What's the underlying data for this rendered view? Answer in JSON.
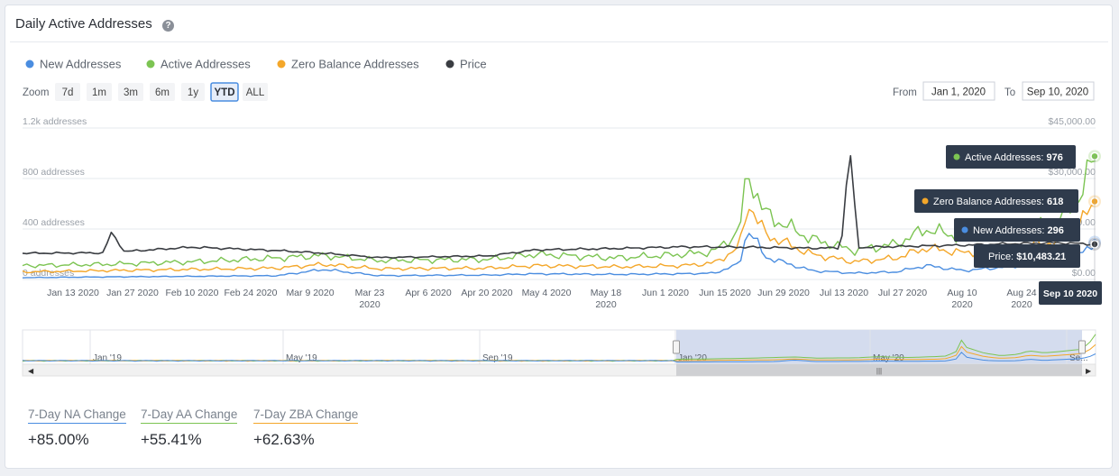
{
  "title": "Daily Active Addresses",
  "help_icon": "question-circle-icon",
  "legend": [
    {
      "name": "New Addresses",
      "color": "#4a8de0"
    },
    {
      "name": "Active Addresses",
      "color": "#7cc452"
    },
    {
      "name": "Zero Balance Addresses",
      "color": "#f4a72a"
    },
    {
      "name": "Price",
      "color": "#3a3d42"
    }
  ],
  "zoom": {
    "label": "Zoom",
    "buttons": [
      "7d",
      "1m",
      "3m",
      "6m",
      "1y",
      "YTD",
      "ALL"
    ],
    "active": "YTD"
  },
  "range": {
    "from_label": "From",
    "from": "Jan 1, 2020",
    "to_label": "To",
    "to": "Sep 10, 2020"
  },
  "chart_data": {
    "type": "line",
    "x_ticks": [
      "Jan 13 2020",
      "Jan 27 2020",
      "Feb 10 2020",
      "Feb 24 2020",
      "Mar 9 2020",
      "Mar 23 2020",
      "Apr 6 2020",
      "Apr 20 2020",
      "May 4 2020",
      "May 18 2020",
      "Jun 1 2020",
      "Jun 15 2020",
      "Jun 29 2020",
      "Jul 13 2020",
      "Jul 27 2020",
      "Aug 10 2020",
      "Aug 24 2020"
    ],
    "y_left_ticks": [
      "0 addresses",
      "400 addresses",
      "800 addresses",
      "1.2k addresses"
    ],
    "y_left_range": [
      0,
      1200
    ],
    "y_right_ticks": [
      "$0.00",
      "$15,000.00",
      "$30,000.00",
      "$45,000.00"
    ],
    "y_right_range": [
      0,
      45000
    ],
    "x_range": [
      "2020-01-01",
      "2020-09-10"
    ],
    "series": [
      {
        "name": "Active Addresses",
        "x": [
          "2020-01-01",
          "2020-01-20",
          "2020-02-10",
          "2020-03-01",
          "2020-03-12",
          "2020-03-25",
          "2020-04-20",
          "2020-05-01",
          "2020-05-20",
          "2020-06-05",
          "2020-06-12",
          "2020-06-18",
          "2020-06-20",
          "2020-06-24",
          "2020-07-05",
          "2020-07-15",
          "2020-07-25",
          "2020-08-01",
          "2020-08-10",
          "2020-08-20",
          "2020-09-01",
          "2020-09-06",
          "2020-09-10"
        ],
        "values": [
          110,
          120,
          140,
          170,
          190,
          150,
          160,
          200,
          170,
          200,
          220,
          380,
          860,
          520,
          320,
          230,
          280,
          400,
          330,
          380,
          450,
          650,
          976
        ]
      },
      {
        "name": "Zero Balance Addresses",
        "x": [
          "2020-01-01",
          "2020-01-20",
          "2020-02-10",
          "2020-03-01",
          "2020-03-12",
          "2020-03-25",
          "2020-04-20",
          "2020-05-01",
          "2020-05-20",
          "2020-06-05",
          "2020-06-12",
          "2020-06-18",
          "2020-06-20",
          "2020-06-24",
          "2020-07-05",
          "2020-07-15",
          "2020-07-25",
          "2020-08-01",
          "2020-08-10",
          "2020-08-20",
          "2020-09-01",
          "2020-09-06",
          "2020-09-10"
        ],
        "values": [
          60,
          70,
          80,
          90,
          120,
          85,
          90,
          110,
          100,
          110,
          130,
          250,
          620,
          360,
          200,
          140,
          170,
          250,
          210,
          250,
          300,
          420,
          618
        ]
      },
      {
        "name": "New Addresses",
        "x": [
          "2020-01-01",
          "2020-01-20",
          "2020-02-10",
          "2020-03-01",
          "2020-03-12",
          "2020-03-25",
          "2020-04-20",
          "2020-05-01",
          "2020-05-20",
          "2020-06-05",
          "2020-06-12",
          "2020-06-18",
          "2020-06-20",
          "2020-06-24",
          "2020-07-05",
          "2020-07-15",
          "2020-07-25",
          "2020-08-01",
          "2020-08-10",
          "2020-08-20",
          "2020-09-01",
          "2020-09-06",
          "2020-09-10"
        ],
        "values": [
          15,
          20,
          25,
          30,
          80,
          30,
          35,
          45,
          40,
          45,
          50,
          120,
          410,
          180,
          70,
          50,
          60,
          110,
          70,
          100,
          130,
          190,
          296
        ]
      },
      {
        "name": "Price",
        "x": [
          "2020-01-01",
          "2020-01-20",
          "2020-01-22",
          "2020-01-25",
          "2020-02-10",
          "2020-03-01",
          "2020-03-12",
          "2020-03-25",
          "2020-04-20",
          "2020-05-01",
          "2020-05-20",
          "2020-06-05",
          "2020-06-20",
          "2020-07-05",
          "2020-07-12",
          "2020-07-14",
          "2020-07-16",
          "2020-07-25",
          "2020-08-10",
          "2020-08-20",
          "2020-09-01",
          "2020-09-10"
        ],
        "values": [
          7800,
          7900,
          14000,
          8300,
          9600,
          8600,
          7800,
          6500,
          7000,
          8800,
          9200,
          9700,
          9600,
          9300,
          9400,
          40000,
          9500,
          9800,
          10200,
          10600,
          10900,
          10483
        ]
      }
    ]
  },
  "tooltips": {
    "active": {
      "label": "Active Addresses:",
      "value": "976"
    },
    "zero": {
      "label": "Zero Balance Addresses:",
      "value": "618"
    },
    "new": {
      "label": "New Addresses:",
      "value": "296"
    },
    "price": {
      "label": "Price:",
      "value": "$10,483.21"
    },
    "date": "Sep 10 2020"
  },
  "navigator": {
    "labels": [
      "Jan '19",
      "May '19",
      "Sep '19",
      "Jan '20",
      "May '20",
      "Se..."
    ]
  },
  "stats": [
    {
      "label": "7-Day NA Change",
      "value": "+85.00%",
      "color": "#4a8de0"
    },
    {
      "label": "7-Day AA Change",
      "value": "+55.41%",
      "color": "#7cc452"
    },
    {
      "label": "7-Day ZBA Change",
      "value": "+62.63%",
      "color": "#f4a72a"
    }
  ]
}
